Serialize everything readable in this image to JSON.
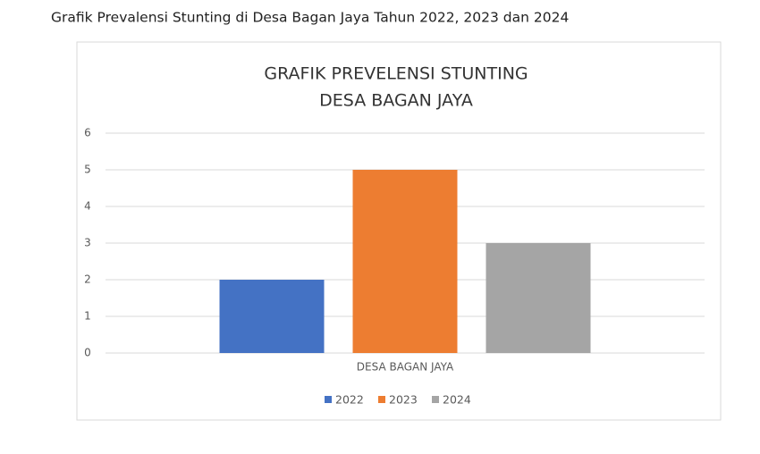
{
  "caption": "Grafik Prevalensi Stunting di Desa Bagan Jaya Tahun 2022, 2023 dan 2024",
  "chart_data": {
    "type": "bar",
    "title": [
      "GRAFIK PREVELENSI STUNTING",
      "DESA BAGAN JAYA"
    ],
    "categories": [
      "DESA BAGAN JAYA"
    ],
    "series": [
      {
        "name": "2022",
        "color": "#4472c4",
        "values": [
          2
        ]
      },
      {
        "name": "2023",
        "color": "#ed7d31",
        "values": [
          5
        ]
      },
      {
        "name": "2024",
        "color": "#a5a5a5",
        "values": [
          3
        ]
      }
    ],
    "ylim": [
      0,
      6
    ],
    "yticks": [
      0,
      1,
      2,
      3,
      4,
      5,
      6
    ],
    "grid": true,
    "legend": "bottom"
  }
}
